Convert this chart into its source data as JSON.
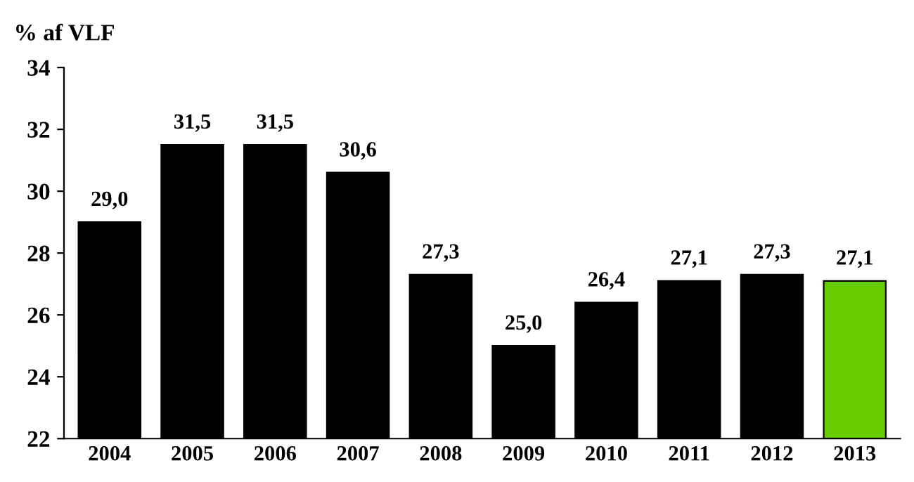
{
  "chart_data": {
    "type": "bar",
    "ylabel": "% af VLF",
    "categories": [
      "2004",
      "2005",
      "2006",
      "2007",
      "2008",
      "2009",
      "2010",
      "2011",
      "2012",
      "2013"
    ],
    "values": [
      29.0,
      31.5,
      31.5,
      30.6,
      27.3,
      25.0,
      26.4,
      27.1,
      27.3,
      27.1
    ],
    "colors": [
      "#000000",
      "#000000",
      "#000000",
      "#000000",
      "#000000",
      "#000000",
      "#000000",
      "#000000",
      "#000000",
      "#66cc00"
    ],
    "value_labels": [
      "29,0",
      "31,5",
      "31,5",
      "30,6",
      "27,3",
      "25,0",
      "26,4",
      "27,1",
      "27,3",
      "27,1"
    ],
    "ylim": [
      22,
      34
    ],
    "yticks": [
      22,
      24,
      26,
      28,
      30,
      32,
      34
    ],
    "grid": false,
    "legend": false
  }
}
